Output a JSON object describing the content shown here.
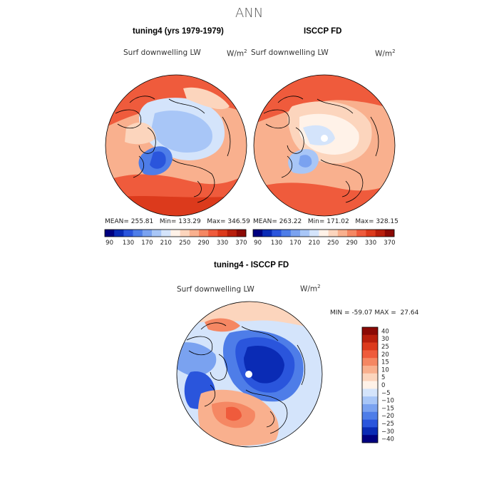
{
  "page": {
    "title": "ANN"
  },
  "chart_data": [
    {
      "type": "heatmap",
      "projection": "north-polar-stereographic",
      "title": "tuning4 (yrs 1979-1979)",
      "variable": "Surf downwelling LW",
      "units_base": "W/m",
      "units_exp": "2",
      "stats": {
        "mean_label": "MEAN=",
        "mean": "255.81",
        "min_label": "Min=",
        "min": "133.29",
        "max_label": "Max=",
        "max": "346.59"
      },
      "colorbar": {
        "levels": [
          90,
          110,
          130,
          150,
          170,
          190,
          210,
          230,
          250,
          270,
          290,
          310,
          330,
          350,
          370
        ],
        "tick_labels": [
          "90",
          "130",
          "170",
          "210",
          "250",
          "290",
          "330",
          "370"
        ],
        "colors": [
          "#000080",
          "#0a2bb5",
          "#2a55dc",
          "#4e7de8",
          "#7aa2f0",
          "#a8c6f7",
          "#d4e4fb",
          "#fff2e8",
          "#fcd5bd",
          "#f9b08e",
          "#f58763",
          "#ef5b3c",
          "#dc3a1c",
          "#b81f0c",
          "#8b0a05"
        ]
      }
    },
    {
      "type": "heatmap",
      "projection": "north-polar-stereographic",
      "title": "ISCCP FD",
      "variable": "Surf downwelling LW",
      "units_base": "W/m",
      "units_exp": "2",
      "stats": {
        "mean_label": "MEAN=",
        "mean": "263.22",
        "min_label": "Min=",
        "min": "171.02",
        "max_label": "Max=",
        "max": "328.15"
      },
      "colorbar": {
        "levels": [
          90,
          110,
          130,
          150,
          170,
          190,
          210,
          230,
          250,
          270,
          290,
          310,
          330,
          350,
          370
        ],
        "tick_labels": [
          "90",
          "130",
          "170",
          "210",
          "250",
          "290",
          "330",
          "370"
        ],
        "colors": [
          "#000080",
          "#0a2bb5",
          "#2a55dc",
          "#4e7de8",
          "#7aa2f0",
          "#a8c6f7",
          "#d4e4fb",
          "#fff2e8",
          "#fcd5bd",
          "#f9b08e",
          "#f58763",
          "#ef5b3c",
          "#dc3a1c",
          "#b81f0c",
          "#8b0a05"
        ]
      }
    },
    {
      "type": "heatmap",
      "projection": "north-polar-stereographic",
      "title": "tuning4 - ISCCP FD",
      "variable": "Surf downwelling LW",
      "units_base": "W/m",
      "units_exp": "2",
      "stats": {
        "min_label": "MIN =",
        "min": "-59.07",
        "max_label": "MAX =",
        "max": "27.64"
      },
      "colorbar": {
        "levels": [
          40,
          30,
          25,
          20,
          15,
          10,
          5,
          0,
          -5,
          -10,
          -15,
          -20,
          -25,
          -30,
          -40
        ],
        "tick_labels": [
          "40",
          "30",
          "25",
          "20",
          "15",
          "10",
          "5",
          "0",
          "−5",
          "−10",
          "−15",
          "−20",
          "−25",
          "−30",
          "−40"
        ],
        "colors": [
          "#8b0a05",
          "#b81f0c",
          "#dc3a1c",
          "#ef5b3c",
          "#f58763",
          "#f9b08e",
          "#fcd5bd",
          "#fff2e8",
          "#d4e4fb",
          "#a8c6f7",
          "#7aa2f0",
          "#4e7de8",
          "#2a55dc",
          "#0a2bb5",
          "#000080"
        ]
      }
    }
  ]
}
